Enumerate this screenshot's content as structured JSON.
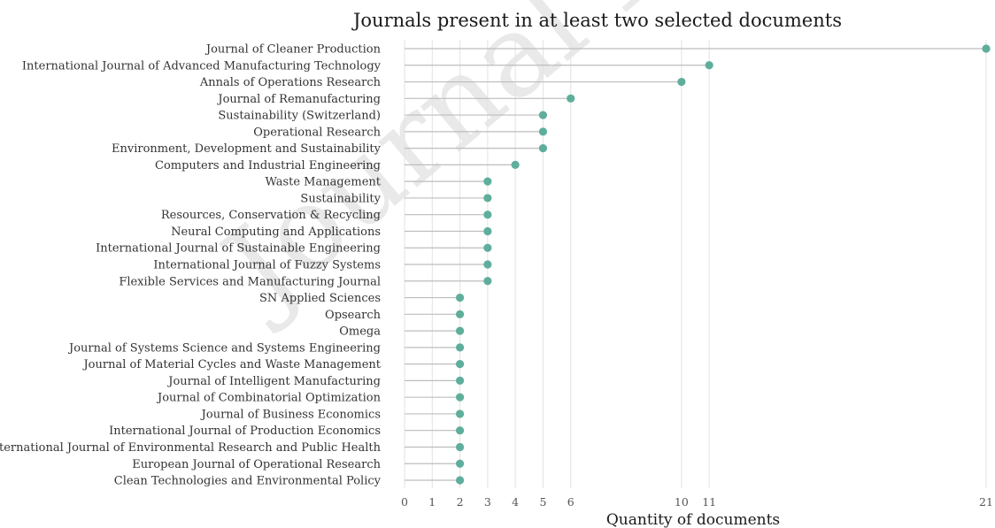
{
  "chart_data": {
    "type": "lollipop",
    "title": "Journals present in at least two selected documents",
    "xlabel": "Quantity of documents",
    "ylabel": "",
    "xlim": [
      0,
      21
    ],
    "xticks": [
      0,
      1,
      2,
      3,
      4,
      5,
      6,
      10,
      11,
      21
    ],
    "grid": "vertical",
    "marker_color": "#5fae9c",
    "stem_color": "#bdbdbd",
    "watermark": "Journal Pre",
    "categories": [
      "Journal of Cleaner Production",
      "International Journal of Advanced Manufacturing Technology",
      "Annals of Operations Research",
      "Journal of Remanufacturing",
      "Sustainability (Switzerland)",
      "Operational Research",
      "Environment, Development and Sustainability",
      "Computers and Industrial Engineering",
      "Waste Management",
      "Sustainability",
      "Resources, Conservation & Recycling",
      "Neural Computing and Applications",
      "International Journal of Sustainable Engineering",
      "International Journal of Fuzzy Systems",
      "Flexible Services and Manufacturing Journal",
      "SN Applied Sciences",
      "Opsearch",
      "Omega",
      "Journal of Systems Science and Systems Engineering",
      "Journal of Material Cycles and Waste Management",
      "Journal of Intelligent Manufacturing",
      "Journal of Combinatorial Optimization",
      "Journal of Business Economics",
      "International Journal of Production Economics",
      "International Journal of Environmental Research and Public Health",
      "European Journal of Operational Research",
      "Clean Technologies and Environmental Policy"
    ],
    "values": [
      21,
      11,
      10,
      6,
      5,
      5,
      5,
      4,
      3,
      3,
      3,
      3,
      3,
      3,
      3,
      2,
      2,
      2,
      2,
      2,
      2,
      2,
      2,
      2,
      2,
      2,
      2
    ]
  }
}
